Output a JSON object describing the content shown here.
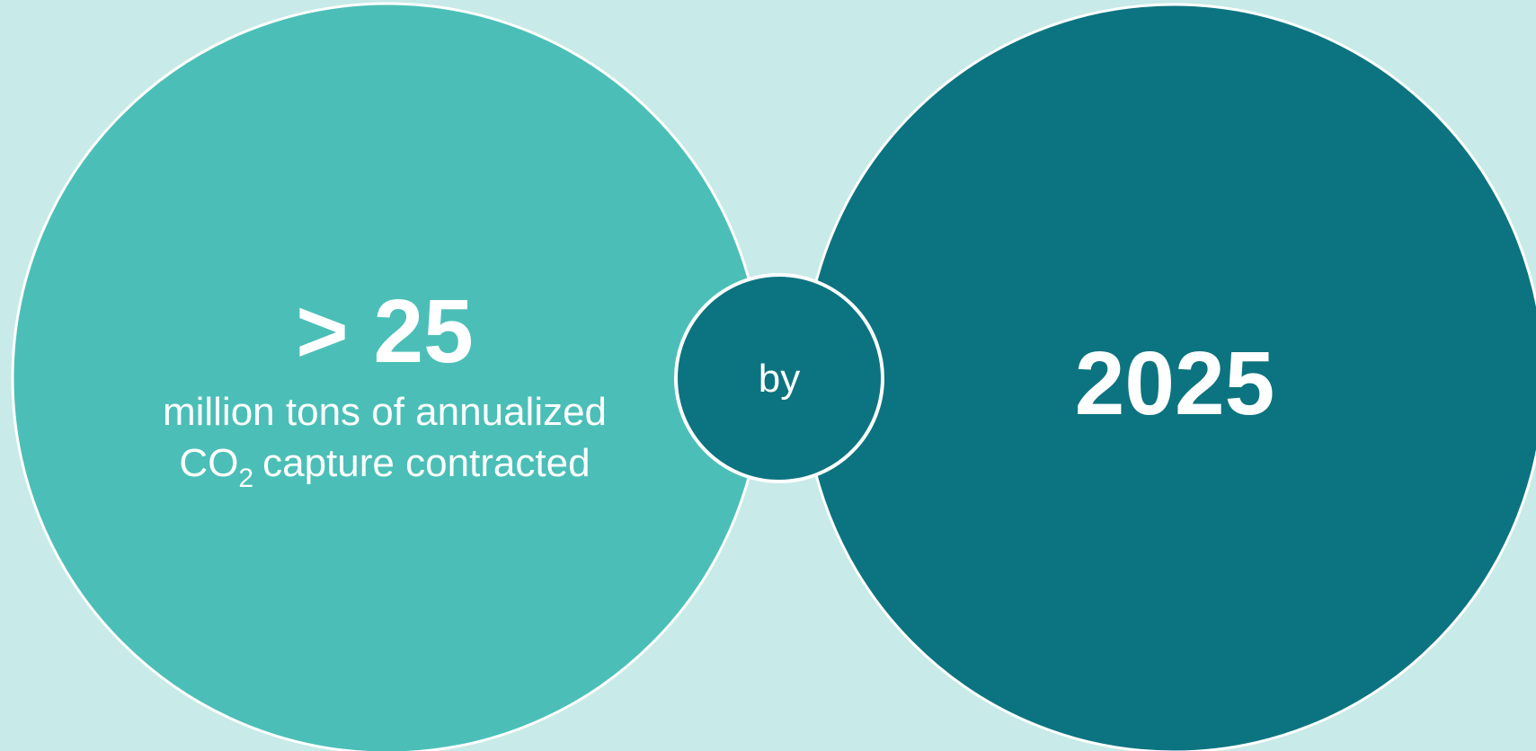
{
  "left": {
    "headline": "> 25",
    "line1": "million tons of annualized",
    "line2_prefix": "CO",
    "line2_subscript": "2",
    "line2_rest": "capture contracted"
  },
  "connector": "by",
  "right": {
    "headline": "2025"
  }
}
